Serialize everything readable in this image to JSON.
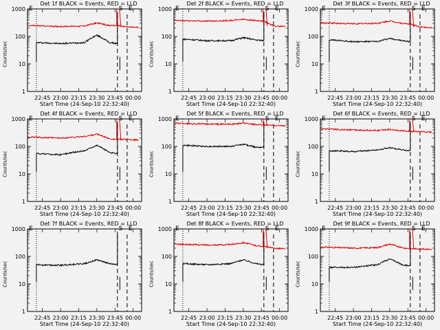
{
  "axes": {
    "ylabel": "Counts/sec",
    "yticks": [
      "1",
      "10",
      "100",
      "1000"
    ],
    "xticks": [
      "22:45",
      "23:00",
      "23:15",
      "23:30",
      "23:45",
      "00:00"
    ],
    "xlabel": "Start Time (24-Sep-10 22:32:40)"
  },
  "markers": [
    "S",
    "E"
  ],
  "colors": {
    "events": "#000000",
    "lld": "#e00000",
    "background": "#f2f2f2"
  },
  "chart_data": [
    {
      "type": "line",
      "title": "Det 1f BLACK = Events, RED = LLD",
      "x_range": [
        "22:32:40",
        "00:07:00"
      ],
      "y_scale": "log",
      "ylim": [
        1,
        1000
      ],
      "series": [
        {
          "name": "BLACK = Events",
          "x": [
            "22:40",
            "23:00",
            "23:20",
            "23:30",
            "23:40",
            "23:47"
          ],
          "values": [
            60,
            55,
            60,
            110,
            60,
            55
          ]
        },
        {
          "name": "RED = LLD",
          "x": [
            "22:33",
            "23:00",
            "23:20",
            "23:30",
            "23:40",
            "23:47",
            "23:55",
            "00:05"
          ],
          "values": [
            250,
            230,
            240,
            310,
            250,
            250,
            220,
            210
          ]
        }
      ]
    },
    {
      "type": "line",
      "title": "Det 2f BLACK = Events, RED = LLD",
      "x_range": [
        "22:32:40",
        "00:07:00"
      ],
      "y_scale": "log",
      "ylim": [
        1,
        1000
      ],
      "series": [
        {
          "name": "BLACK = Events",
          "x": [
            "22:40",
            "23:00",
            "23:20",
            "23:30",
            "23:40",
            "23:47"
          ],
          "values": [
            80,
            70,
            70,
            90,
            75,
            70
          ]
        },
        {
          "name": "RED = LLD",
          "x": [
            "22:33",
            "23:00",
            "23:20",
            "23:30",
            "23:40",
            "23:47",
            "23:55",
            "00:05"
          ],
          "values": [
            380,
            360,
            380,
            420,
            380,
            350,
            240,
            230
          ]
        }
      ]
    },
    {
      "type": "line",
      "title": "Det 3f BLACK = Events, RED = LLD",
      "x_range": [
        "22:32:40",
        "00:07:00"
      ],
      "y_scale": "log",
      "ylim": [
        1,
        1000
      ],
      "series": [
        {
          "name": "BLACK = Events",
          "x": [
            "22:40",
            "23:00",
            "23:20",
            "23:30",
            "23:40",
            "23:47"
          ],
          "values": [
            75,
            65,
            65,
            85,
            70,
            65
          ]
        },
        {
          "name": "RED = LLD",
          "x": [
            "22:33",
            "23:00",
            "23:20",
            "23:30",
            "23:40",
            "23:47",
            "23:55",
            "00:05"
          ],
          "values": [
            310,
            290,
            300,
            360,
            300,
            280,
            220,
            210
          ]
        }
      ]
    },
    {
      "type": "line",
      "title": "Det 4f BLACK = Events, RED = LLD",
      "x_range": [
        "22:32:40",
        "00:07:00"
      ],
      "y_scale": "log",
      "ylim": [
        1,
        1000
      ],
      "series": [
        {
          "name": "BLACK = Events",
          "x": [
            "22:40",
            "23:00",
            "23:20",
            "23:30",
            "23:40",
            "23:47"
          ],
          "values": [
            55,
            50,
            70,
            110,
            60,
            55
          ]
        },
        {
          "name": "RED = LLD",
          "x": [
            "22:33",
            "23:00",
            "23:20",
            "23:30",
            "23:40",
            "23:47",
            "23:55",
            "00:05"
          ],
          "values": [
            220,
            200,
            230,
            280,
            190,
            180,
            180,
            170
          ]
        }
      ]
    },
    {
      "type": "line",
      "title": "Det 5f BLACK = Events, RED = LLD",
      "x_range": [
        "22:32:40",
        "00:07:00"
      ],
      "y_scale": "log",
      "ylim": [
        1,
        1000
      ],
      "series": [
        {
          "name": "BLACK = Events",
          "x": [
            "22:40",
            "23:00",
            "23:20",
            "23:30",
            "23:40",
            "23:47"
          ],
          "values": [
            110,
            100,
            100,
            120,
            95,
            95
          ]
        },
        {
          "name": "RED = LLD",
          "x": [
            "22:33",
            "23:00",
            "23:20",
            "23:30",
            "23:40",
            "23:47",
            "23:55",
            "00:05"
          ],
          "values": [
            700,
            650,
            640,
            700,
            620,
            600,
            580,
            560
          ]
        }
      ]
    },
    {
      "type": "line",
      "title": "Det 6f BLACK = Events, RED = LLD",
      "x_range": [
        "22:32:40",
        "00:07:00"
      ],
      "y_scale": "log",
      "ylim": [
        1,
        1000
      ],
      "series": [
        {
          "name": "BLACK = Events",
          "x": [
            "22:40",
            "23:00",
            "23:20",
            "23:30",
            "23:40",
            "23:47"
          ],
          "values": [
            70,
            65,
            75,
            90,
            75,
            70
          ]
        },
        {
          "name": "RED = LLD",
          "x": [
            "22:33",
            "23:00",
            "23:20",
            "23:30",
            "23:40",
            "23:47",
            "23:55",
            "00:05"
          ],
          "values": [
            430,
            400,
            380,
            420,
            370,
            350,
            340,
            330
          ]
        }
      ]
    },
    {
      "type": "line",
      "title": "Det 7f BLACK = Events, RED = LLD",
      "x_range": [
        "22:32:40",
        "00:07:00"
      ],
      "y_scale": "log",
      "ylim": [
        1,
        1000
      ],
      "series": [
        {
          "name": "BLACK = Events",
          "x": [
            "22:40",
            "23:00",
            "23:20",
            "23:30",
            "23:40",
            "23:47"
          ],
          "values": [
            50,
            48,
            55,
            75,
            55,
            50
          ]
        }
      ]
    },
    {
      "type": "line",
      "title": "Det 8f BLACK = Events, RED = LLD",
      "x_range": [
        "22:32:40",
        "00:07:00"
      ],
      "y_scale": "log",
      "ylim": [
        1,
        1000
      ],
      "series": [
        {
          "name": "BLACK = Events",
          "x": [
            "22:40",
            "23:00",
            "23:20",
            "23:30",
            "23:40",
            "23:47"
          ],
          "values": [
            55,
            50,
            55,
            75,
            55,
            50
          ]
        },
        {
          "name": "RED = LLD",
          "x": [
            "22:33",
            "23:00",
            "23:20",
            "23:30",
            "23:40",
            "23:47",
            "23:55",
            "00:05"
          ],
          "values": [
            280,
            260,
            270,
            320,
            250,
            230,
            200,
            190
          ]
        }
      ]
    },
    {
      "type": "line",
      "title": "Det 9f BLACK = Events, RED = LLD",
      "x_range": [
        "22:32:40",
        "00:07:00"
      ],
      "y_scale": "log",
      "ylim": [
        1,
        1000
      ],
      "series": [
        {
          "name": "BLACK = Events",
          "x": [
            "22:40",
            "23:00",
            "23:20",
            "23:30",
            "23:40",
            "23:47"
          ],
          "values": [
            40,
            40,
            50,
            80,
            50,
            45
          ]
        },
        {
          "name": "RED = LLD",
          "x": [
            "22:33",
            "23:00",
            "23:20",
            "23:30",
            "23:40",
            "23:47",
            "23:55",
            "00:05"
          ],
          "values": [
            220,
            200,
            210,
            280,
            210,
            190,
            190,
            180
          ]
        }
      ]
    }
  ]
}
